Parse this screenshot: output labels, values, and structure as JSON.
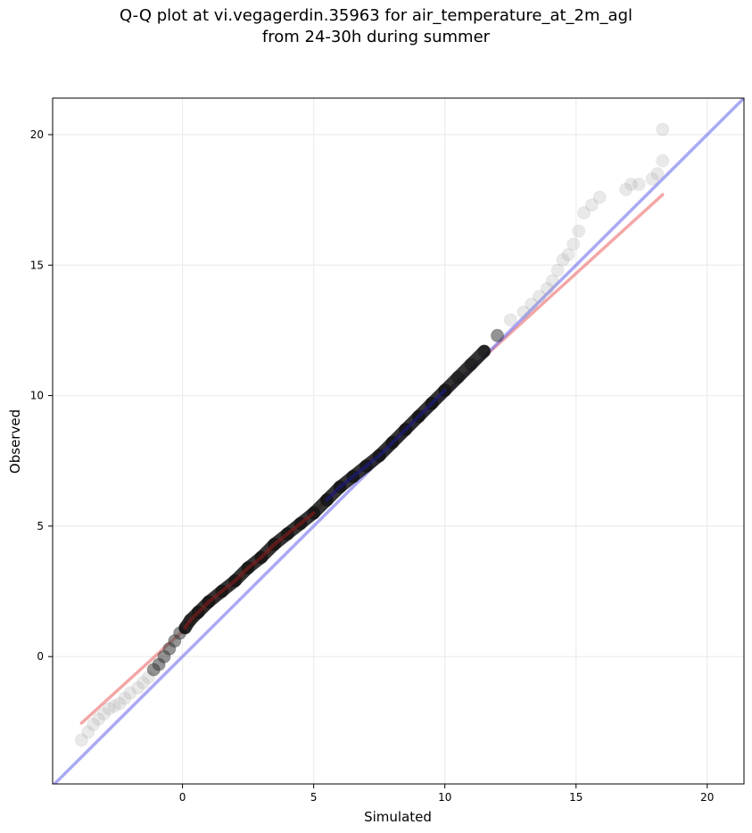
{
  "title_line1": "Q-Q plot at vi.vegagerdin.35963 for air_temperature_at_2m_agl",
  "title_line2": "from 24-30h during summer",
  "chart_data": {
    "type": "scatter",
    "title": "Q-Q plot at vi.vegagerdin.35963 for air_temperature_at_2m_agl\nfrom 24-30h during summer",
    "xlabel": "Simulated",
    "ylabel": "Observed",
    "xlim": [
      -4.95,
      21.4
    ],
    "ylim": [
      -4.88,
      21.4
    ],
    "xticks": [
      0,
      5,
      10,
      15,
      20
    ],
    "yticks": [
      0,
      5,
      10,
      15,
      20
    ],
    "xtick_labels": [
      "0",
      "5",
      "10",
      "15",
      "20"
    ],
    "ytick_labels": [
      "0",
      "5",
      "10",
      "15",
      "20"
    ],
    "grid": true,
    "colors": {
      "points_outer": "#9e9e9e",
      "points_core_low": "#000000",
      "points_core_mid": "#1a1a1a",
      "fit_line": "#f08080",
      "identity_line": "#6f6fef"
    },
    "series": [
      {
        "kind": "quantile_points",
        "x": [
          -3.85,
          -3.6,
          -3.4,
          -3.2,
          -3.0,
          -2.8,
          -2.6,
          -2.4,
          -2.2,
          -2.0,
          -1.7,
          -1.5,
          -1.3,
          -1.1,
          -0.9,
          -0.7,
          -0.5,
          -0.3,
          -0.1,
          0.1,
          0.3,
          0.6,
          1.0,
          1.5,
          2.0,
          2.5,
          3.0,
          3.5,
          4.0,
          4.5,
          5.0,
          5.5,
          6.0,
          6.5,
          7.0,
          7.5,
          8.0,
          8.5,
          9.0,
          9.5,
          10.0,
          10.5,
          11.0,
          11.5,
          12.0,
          12.5,
          13.0,
          13.3,
          13.6,
          13.9,
          14.1,
          14.3,
          14.5,
          14.7,
          14.9,
          15.1,
          15.3,
          15.6,
          15.9,
          16.9,
          17.1,
          17.4,
          17.9,
          18.1,
          18.3,
          18.3
        ],
        "y": [
          -3.2,
          -2.9,
          -2.6,
          -2.4,
          -2.2,
          -2.0,
          -1.9,
          -1.8,
          -1.6,
          -1.4,
          -1.2,
          -1.0,
          -0.8,
          -0.5,
          -0.3,
          0.0,
          0.3,
          0.6,
          0.9,
          1.1,
          1.4,
          1.7,
          2.1,
          2.5,
          2.9,
          3.4,
          3.8,
          4.3,
          4.7,
          5.1,
          5.5,
          6.0,
          6.5,
          6.9,
          7.3,
          7.7,
          8.2,
          8.7,
          9.2,
          9.7,
          10.2,
          10.7,
          11.2,
          11.7,
          12.3,
          12.9,
          13.2,
          13.5,
          13.8,
          14.1,
          14.4,
          14.8,
          15.2,
          15.4,
          15.8,
          16.3,
          17.0,
          17.3,
          17.6,
          17.9,
          18.1,
          18.1,
          18.3,
          18.5,
          19.0,
          20.2
        ]
      },
      {
        "kind": "fit_line",
        "x": [
          -3.85,
          18.3
        ],
        "y": [
          -2.55,
          17.7
        ]
      },
      {
        "kind": "identity_line",
        "x": [
          -4.95,
          21.4
        ],
        "y": [
          -4.95,
          21.4
        ]
      }
    ]
  }
}
